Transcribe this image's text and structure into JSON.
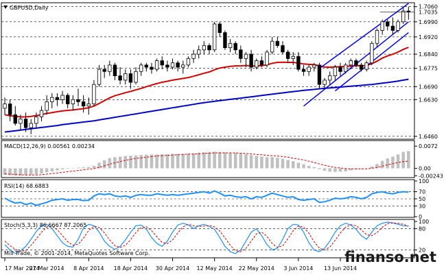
{
  "chart_data": [
    {
      "type": "candlestick",
      "title": "GBPUSD,Daily",
      "current_price": "1.7035",
      "price_labels": [
        "1.7060",
        "1.6990",
        "1.6920",
        "1.6840",
        "1.6775",
        "1.6690",
        "1.6630",
        "1.6460"
      ],
      "ylim": [
        1.645,
        1.7075
      ],
      "x_tick_labels": [
        "17 Mar 2014",
        "27 Mar 2014",
        "8 Apr 2014",
        "18 Apr 2014",
        "30 Apr 2014",
        "12 May 2014",
        "22 May 2014",
        "3 Jun 2014",
        "13 Jun 2014"
      ],
      "copyright": "Mill Trade, © 2001-2014, MetaQuotes Software Corp.",
      "candles": [
        [
          1.659,
          1.664,
          1.656,
          1.661
        ],
        [
          1.661,
          1.663,
          1.653,
          1.656
        ],
        [
          1.656,
          1.66,
          1.651,
          1.652
        ],
        [
          1.652,
          1.656,
          1.649,
          1.654
        ],
        [
          1.654,
          1.657,
          1.648,
          1.65
        ],
        [
          1.65,
          1.654,
          1.647,
          1.652
        ],
        [
          1.652,
          1.657,
          1.65,
          1.655
        ],
        [
          1.655,
          1.66,
          1.653,
          1.658
        ],
        [
          1.658,
          1.665,
          1.656,
          1.662
        ],
        [
          1.662,
          1.666,
          1.659,
          1.664
        ],
        [
          1.664,
          1.666,
          1.66,
          1.663
        ],
        [
          1.663,
          1.667,
          1.661,
          1.665
        ],
        [
          1.665,
          1.666,
          1.659,
          1.661
        ],
        [
          1.661,
          1.665,
          1.658,
          1.663
        ],
        [
          1.663,
          1.668,
          1.66,
          1.662
        ],
        [
          1.662,
          1.665,
          1.657,
          1.66
        ],
        [
          1.66,
          1.664,
          1.656,
          1.661
        ],
        [
          1.661,
          1.672,
          1.66,
          1.67
        ],
        [
          1.67,
          1.679,
          1.669,
          1.677
        ],
        [
          1.677,
          1.679,
          1.673,
          1.676
        ],
        [
          1.676,
          1.681,
          1.674,
          1.679
        ],
        [
          1.679,
          1.68,
          1.672,
          1.674
        ],
        [
          1.674,
          1.678,
          1.67,
          1.672
        ],
        [
          1.672,
          1.677,
          1.67,
          1.675
        ],
        [
          1.675,
          1.677,
          1.668,
          1.671
        ],
        [
          1.671,
          1.678,
          1.67,
          1.676
        ],
        [
          1.676,
          1.68,
          1.674,
          1.679
        ],
        [
          1.679,
          1.68,
          1.676,
          1.678
        ],
        [
          1.678,
          1.68,
          1.675,
          1.677
        ],
        [
          1.677,
          1.682,
          1.676,
          1.681
        ],
        [
          1.681,
          1.683,
          1.677,
          1.679
        ],
        [
          1.679,
          1.681,
          1.676,
          1.678
        ],
        [
          1.678,
          1.682,
          1.677,
          1.68
        ],
        [
          1.68,
          1.681,
          1.676,
          1.678
        ],
        [
          1.678,
          1.681,
          1.675,
          1.679
        ],
        [
          1.679,
          1.683,
          1.678,
          1.682
        ],
        [
          1.682,
          1.686,
          1.68,
          1.684
        ],
        [
          1.684,
          1.688,
          1.682,
          1.686
        ],
        [
          1.686,
          1.69,
          1.684,
          1.688
        ],
        [
          1.688,
          1.689,
          1.684,
          1.686
        ],
        [
          1.686,
          1.699,
          1.685,
          1.698
        ],
        [
          1.698,
          1.699,
          1.692,
          1.694
        ],
        [
          1.694,
          1.695,
          1.686,
          1.687
        ],
        [
          1.687,
          1.691,
          1.685,
          1.689
        ],
        [
          1.689,
          1.69,
          1.684,
          1.686
        ],
        [
          1.686,
          1.688,
          1.68,
          1.682
        ],
        [
          1.682,
          1.685,
          1.678,
          1.684
        ],
        [
          1.684,
          1.686,
          1.676,
          1.678
        ],
        [
          1.678,
          1.682,
          1.677,
          1.681
        ],
        [
          1.681,
          1.683,
          1.678,
          1.679
        ],
        [
          1.679,
          1.686,
          1.678,
          1.685
        ],
        [
          1.685,
          1.692,
          1.684,
          1.69
        ],
        [
          1.69,
          1.692,
          1.687,
          1.688
        ],
        [
          1.688,
          1.69,
          1.684,
          1.685
        ],
        [
          1.685,
          1.686,
          1.68,
          1.682
        ],
        [
          1.682,
          1.685,
          1.679,
          1.683
        ],
        [
          1.683,
          1.685,
          1.676,
          1.677
        ],
        [
          1.677,
          1.679,
          1.674,
          1.676
        ],
        [
          1.676,
          1.679,
          1.674,
          1.678
        ],
        [
          1.678,
          1.68,
          1.676,
          1.679
        ],
        [
          1.679,
          1.68,
          1.668,
          1.67
        ],
        [
          1.67,
          1.673,
          1.668,
          1.672
        ],
        [
          1.672,
          1.676,
          1.67,
          1.674
        ],
        [
          1.674,
          1.679,
          1.672,
          1.678
        ],
        [
          1.678,
          1.68,
          1.674,
          1.676
        ],
        [
          1.676,
          1.68,
          1.675,
          1.679
        ],
        [
          1.679,
          1.682,
          1.677,
          1.681
        ],
        [
          1.681,
          1.682,
          1.678,
          1.679
        ],
        [
          1.679,
          1.68,
          1.676,
          1.677
        ],
        [
          1.677,
          1.681,
          1.676,
          1.68
        ],
        [
          1.68,
          1.69,
          1.679,
          1.689
        ],
        [
          1.689,
          1.696,
          1.687,
          1.695
        ],
        [
          1.695,
          1.7,
          1.693,
          1.699
        ],
        [
          1.699,
          1.7,
          1.695,
          1.697
        ],
        [
          1.697,
          1.701,
          1.693,
          1.695
        ],
        [
          1.695,
          1.7,
          1.694,
          1.699
        ],
        [
          1.699,
          1.706,
          1.698,
          1.704
        ],
        [
          1.704,
          1.706,
          1.7,
          1.7035
        ]
      ],
      "series": [
        {
          "name": "",
          "color": "#d40000",
          "values": [
            1.656,
            1.6555,
            1.6552,
            1.655,
            1.655,
            1.6552,
            1.6556,
            1.656,
            1.6566,
            1.657,
            1.6574,
            1.6578,
            1.658,
            1.6582,
            1.6585,
            1.6588,
            1.6592,
            1.66,
            1.6612,
            1.6625,
            1.6638,
            1.6648,
            1.6655,
            1.6662,
            1.6668,
            1.6675,
            1.6682,
            1.669,
            1.6697,
            1.6704,
            1.671,
            1.6715,
            1.672,
            1.6724,
            1.6728,
            1.6732,
            1.6738,
            1.6745,
            1.6752,
            1.6758,
            1.6768,
            1.6776,
            1.678,
            1.6784,
            1.6786,
            1.6786,
            1.6788,
            1.6786,
            1.6786,
            1.6787,
            1.6791,
            1.6798,
            1.6802,
            1.6803,
            1.6802,
            1.6802,
            1.6799,
            1.6795,
            1.6793,
            1.6792,
            1.6786,
            1.6781,
            1.678,
            1.6782,
            1.6782,
            1.6783,
            1.6786,
            1.6787,
            1.6786,
            1.6788,
            1.6796,
            1.6808,
            1.6822,
            1.6832,
            1.684,
            1.685,
            1.6862,
            1.6872
          ]
        },
        {
          "name": "",
          "color": "#0000c8",
          "values": [
            1.648,
            1.6483,
            1.6486,
            1.6489,
            1.6492,
            1.6495,
            1.6498,
            1.6501,
            1.6504,
            1.6507,
            1.651,
            1.6514,
            1.6517,
            1.652,
            1.6523,
            1.6526,
            1.6529,
            1.6532,
            1.6536,
            1.654,
            1.6544,
            1.6548,
            1.6552,
            1.6556,
            1.656,
            1.6564,
            1.6568,
            1.6572,
            1.6576,
            1.658,
            1.6584,
            1.6588,
            1.6592,
            1.6596,
            1.66,
            1.6604,
            1.6608,
            1.6612,
            1.6616,
            1.6619,
            1.6622,
            1.6625,
            1.6628,
            1.6631,
            1.6634,
            1.6637,
            1.664,
            1.6643,
            1.6646,
            1.6649,
            1.6652,
            1.6655,
            1.6658,
            1.6661,
            1.6664,
            1.6667,
            1.667,
            1.6673,
            1.6675,
            1.6677,
            1.668,
            1.6682,
            1.6684,
            1.6686,
            1.6688,
            1.669,
            1.6692,
            1.6694,
            1.6696,
            1.6698,
            1.67,
            1.6703,
            1.6706,
            1.6709,
            1.6712,
            1.6716,
            1.672,
            1.6724
          ]
        }
      ],
      "channel_lines": [
        {
          "start": [
            60,
            1.6774
          ],
          "end": [
            77,
            1.7075
          ]
        },
        {
          "start": [
            57,
            1.66
          ],
          "end": [
            77,
            1.699
          ]
        },
        {
          "start": [
            63,
            1.667
          ],
          "end": [
            77,
            1.694
          ]
        }
      ]
    },
    {
      "type": "bar",
      "title": "MACD(12,26,9) 0.00561 0.00234",
      "tick_labels": [
        "0.0072",
        "0.00",
        "-0.00243"
      ],
      "ylim": [
        -0.0028,
        0.0088
      ],
      "histogram": [
        -0.0021,
        -0.0023,
        -0.0024,
        -0.0024,
        -0.0023,
        -0.0022,
        -0.002,
        -0.0017,
        -0.0013,
        -0.001,
        -0.0007,
        -0.0004,
        -0.0002,
        0.0,
        0.0002,
        0.0003,
        0.0004,
        0.0008,
        0.0018,
        0.0026,
        0.0033,
        0.0036,
        0.0038,
        0.004,
        0.0041,
        0.0042,
        0.0043,
        0.0044,
        0.0045,
        0.0045,
        0.0046,
        0.0046,
        0.0047,
        0.0047,
        0.0047,
        0.0048,
        0.0049,
        0.0051,
        0.0052,
        0.0053,
        0.0054,
        0.0053,
        0.0052,
        0.0051,
        0.005,
        0.0048,
        0.0046,
        0.0043,
        0.004,
        0.0038,
        0.0036,
        0.0036,
        0.0034,
        0.0031,
        0.0027,
        0.0023,
        0.0018,
        0.0013,
        0.0008,
        0.0004,
        -0.0003,
        -0.0008,
        -0.0011,
        -0.0012,
        -0.0011,
        -0.001,
        -0.0007,
        -0.0004,
        -0.0002,
        0.0,
        0.0006,
        0.0014,
        0.0024,
        0.0032,
        0.0038,
        0.0045,
        0.0053,
        0.0056
      ],
      "signal": [
        -0.0018,
        -0.0019,
        -0.002,
        -0.0021,
        -0.0022,
        -0.0022,
        -0.0022,
        -0.0021,
        -0.0019,
        -0.0017,
        -0.0015,
        -0.0013,
        -0.0011,
        -0.0009,
        -0.0007,
        -0.0005,
        -0.0003,
        -0.0001,
        0.0003,
        0.0008,
        0.0013,
        0.0018,
        0.0022,
        0.0026,
        0.0029,
        0.0032,
        0.0034,
        0.0036,
        0.0038,
        0.004,
        0.0041,
        0.0042,
        0.0043,
        0.0044,
        0.0045,
        0.0046,
        0.0046,
        0.0047,
        0.0048,
        0.0049,
        0.005,
        0.005,
        0.005,
        0.005,
        0.005,
        0.0049,
        0.0048,
        0.0047,
        0.0045,
        0.0044,
        0.0042,
        0.0041,
        0.004,
        0.0038,
        0.0036,
        0.0033,
        0.003,
        0.0027,
        0.0023,
        0.0019,
        0.0014,
        0.001,
        0.0006,
        0.0003,
        0.0001,
        -0.0001,
        -0.0002,
        -0.0002,
        -0.0002,
        -0.0002,
        0.0,
        0.0003,
        0.0007,
        0.0011,
        0.0015,
        0.0019,
        0.0022,
        0.0023
      ]
    },
    {
      "type": "line",
      "title": "RSI(14) 68.6883",
      "tick_labels": [
        "100",
        "70",
        "50",
        "30",
        "0"
      ],
      "ylim": [
        0,
        100
      ],
      "levels": [
        70,
        50,
        30
      ],
      "values": [
        52,
        44,
        38,
        40,
        34,
        38,
        32,
        36,
        40,
        46,
        48,
        50,
        46,
        48,
        48,
        45,
        46,
        58,
        64,
        62,
        64,
        58,
        56,
        58,
        54,
        60,
        62,
        60,
        60,
        64,
        62,
        60,
        62,
        60,
        62,
        64,
        66,
        68,
        70,
        66,
        72,
        66,
        58,
        60,
        56,
        54,
        56,
        50,
        56,
        54,
        60,
        66,
        62,
        58,
        54,
        56,
        48,
        46,
        48,
        50,
        40,
        42,
        46,
        52,
        50,
        52,
        56,
        54,
        50,
        54,
        64,
        68,
        70,
        66,
        64,
        68,
        70,
        69
      ]
    },
    {
      "type": "line",
      "title": "Stoch(5,3,3) 86.6667 87.2065",
      "tick_labels": [
        "100",
        "80",
        "20"
      ],
      "ylim": [
        0,
        100
      ],
      "levels": [
        80,
        20
      ],
      "main": [
        35,
        20,
        10,
        18,
        30,
        50,
        72,
        88,
        92,
        80,
        60,
        40,
        30,
        28,
        50,
        82,
        92,
        88,
        70,
        45,
        30,
        22,
        30,
        48,
        70,
        88,
        90,
        78,
        55,
        38,
        30,
        45,
        70,
        90,
        95,
        90,
        80,
        88,
        92,
        86,
        78,
        55,
        30,
        15,
        10,
        20,
        45,
        70,
        80,
        60,
        35,
        20,
        25,
        50,
        80,
        92,
        90,
        70,
        40,
        20,
        15,
        25,
        45,
        70,
        88,
        95,
        90,
        78,
        60,
        50,
        70,
        88,
        95,
        98,
        96,
        92,
        88,
        87
      ],
      "signal": [
        45,
        32,
        22,
        16,
        19,
        33,
        51,
        70,
        84,
        87,
        77,
        60,
        43,
        33,
        36,
        53,
        75,
        87,
        83,
        68,
        48,
        32,
        27,
        33,
        49,
        69,
        83,
        85,
        74,
        57,
        41,
        38,
        48,
        68,
        85,
        92,
        88,
        86,
        87,
        89,
        85,
        73,
        54,
        33,
        18,
        15,
        25,
        45,
        65,
        70,
        58,
        38,
        27,
        32,
        52,
        74,
        87,
        84,
        67,
        43,
        25,
        20,
        28,
        47,
        68,
        84,
        91,
        88,
        76,
        63,
        60,
        69,
        84,
        94,
        96,
        95,
        92,
        87
      ]
    }
  ],
  "watermark": "finanso.net"
}
